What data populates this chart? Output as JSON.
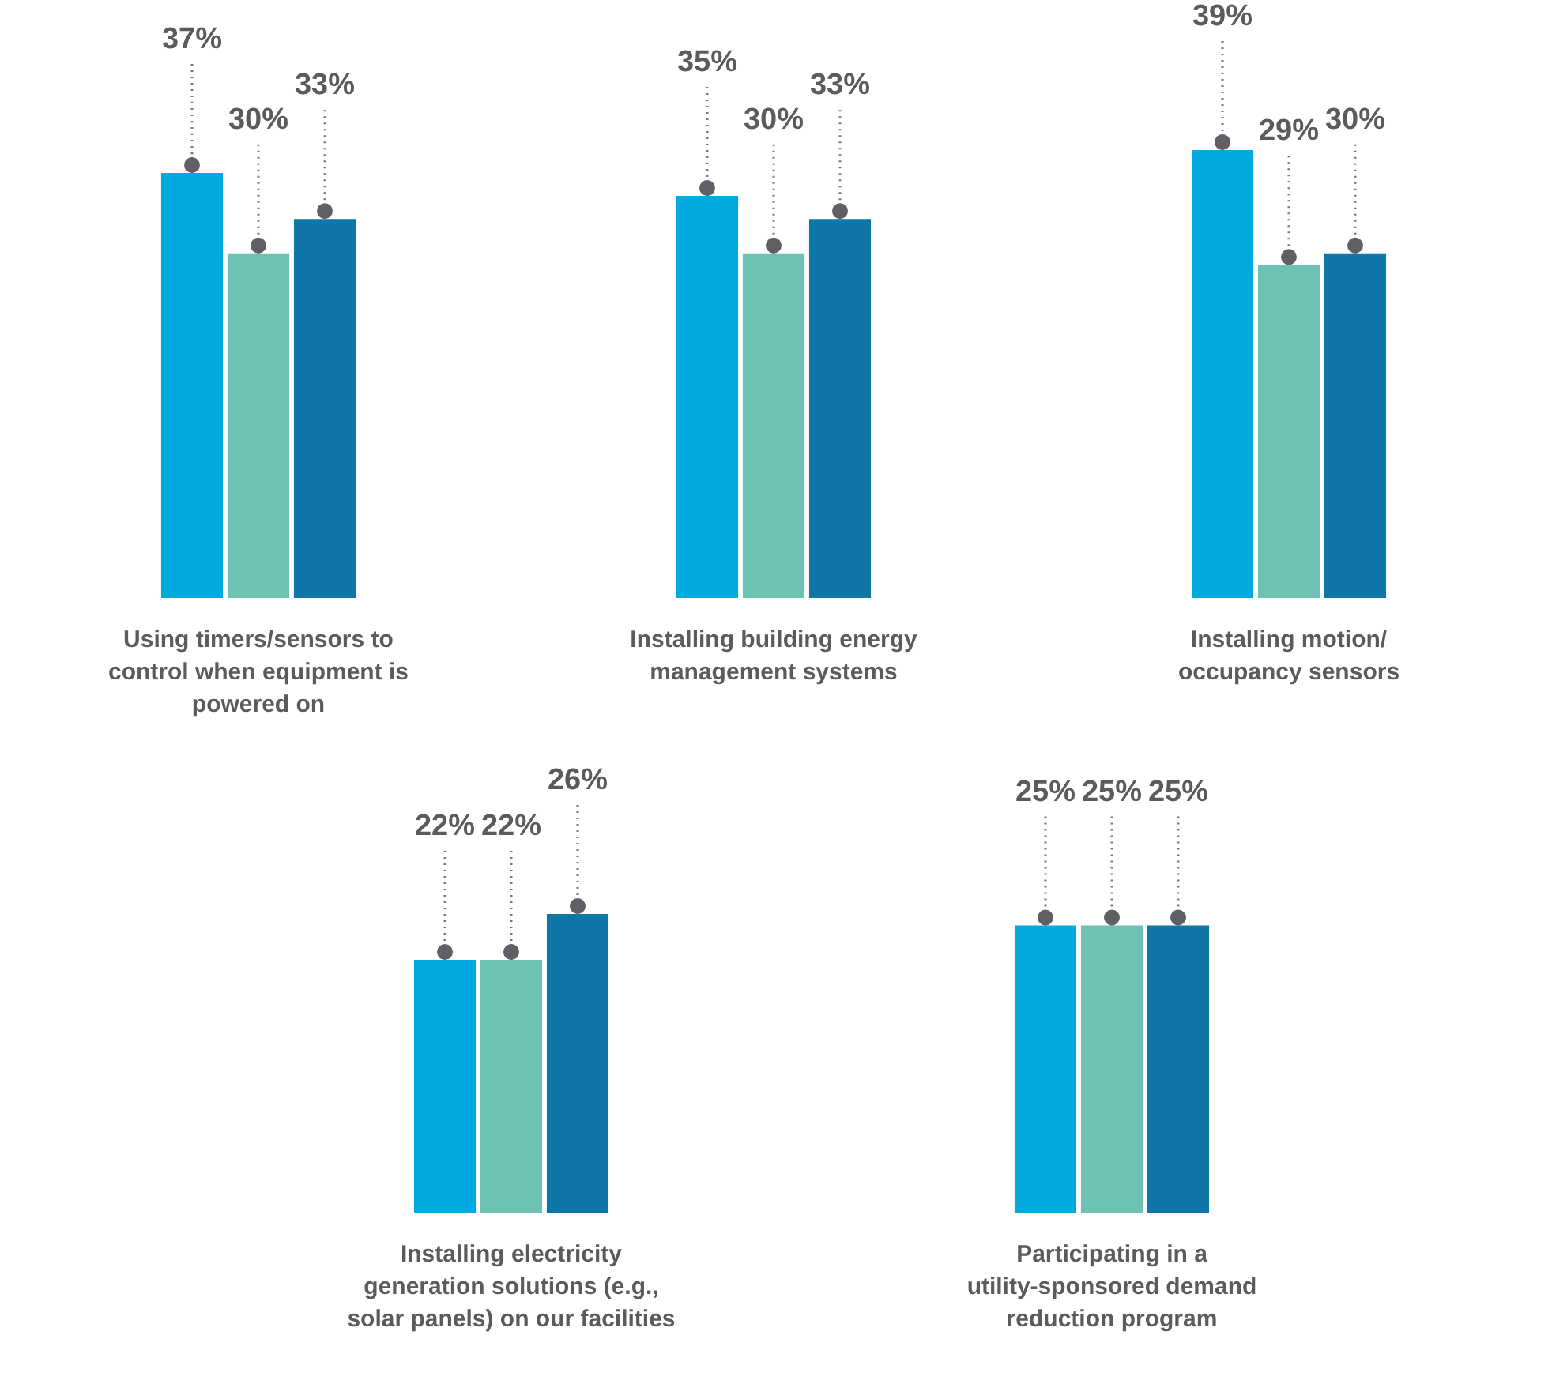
{
  "chart_data": [
    {
      "type": "bar",
      "categories": [
        "Using timers/sensors to\ncontrol when equipment is\npowered on"
      ],
      "tick_labels": "x",
      "series": [
        {
          "color": "#00a9e0",
          "values": [
            37
          ],
          "value_labels": [
            "37%"
          ]
        },
        {
          "color": "#6cc3b3",
          "values": [
            30
          ],
          "value_labels": [
            "30%"
          ]
        },
        {
          "color": "#0f76a8",
          "values": [
            33
          ],
          "value_labels": [
            "33%"
          ]
        }
      ]
    },
    {
      "type": "bar",
      "categories": [
        "Installing building energy\nmanagement systems"
      ],
      "tick_labels": "x",
      "series": [
        {
          "color": "#00a9e0",
          "values": [
            35
          ],
          "value_labels": [
            "35%"
          ]
        },
        {
          "color": "#6cc3b3",
          "values": [
            30
          ],
          "value_labels": [
            "30%"
          ]
        },
        {
          "color": "#0f76a8",
          "values": [
            33
          ],
          "value_labels": [
            "33%"
          ]
        }
      ]
    },
    {
      "type": "bar",
      "categories": [
        "Installing motion/\noccupancy sensors"
      ],
      "tick_labels": "x",
      "series": [
        {
          "color": "#00a9e0",
          "values": [
            39
          ],
          "value_labels": [
            "39%"
          ]
        },
        {
          "color": "#6cc3b3",
          "values": [
            29
          ],
          "value_labels": [
            "29%"
          ]
        },
        {
          "color": "#0f76a8",
          "values": [
            30
          ],
          "value_labels": [
            "30%"
          ]
        }
      ]
    },
    {
      "type": "bar",
      "categories": [
        "Installing electricity\ngeneration solutions (e.g.,\nsolar panels) on our facilities"
      ],
      "tick_labels": "x",
      "series": [
        {
          "color": "#00a9e0",
          "values": [
            22
          ],
          "value_labels": [
            "22%"
          ]
        },
        {
          "color": "#6cc3b3",
          "values": [
            22
          ],
          "value_labels": [
            "22%"
          ]
        },
        {
          "color": "#0f76a8",
          "values": [
            26
          ],
          "value_labels": [
            "26%"
          ]
        }
      ]
    },
    {
      "type": "bar",
      "categories": [
        "Participating in a\nutility-sponsored demand\nreduction program"
      ],
      "tick_labels": "x",
      "series": [
        {
          "color": "#00a9e0",
          "values": [
            25
          ],
          "value_labels": [
            "25%"
          ]
        },
        {
          "color": "#6cc3b3",
          "values": [
            25
          ],
          "value_labels": [
            "25%"
          ]
        },
        {
          "color": "#0f76a8",
          "values": [
            25
          ],
          "value_labels": [
            "25%"
          ]
        }
      ]
    }
  ]
}
